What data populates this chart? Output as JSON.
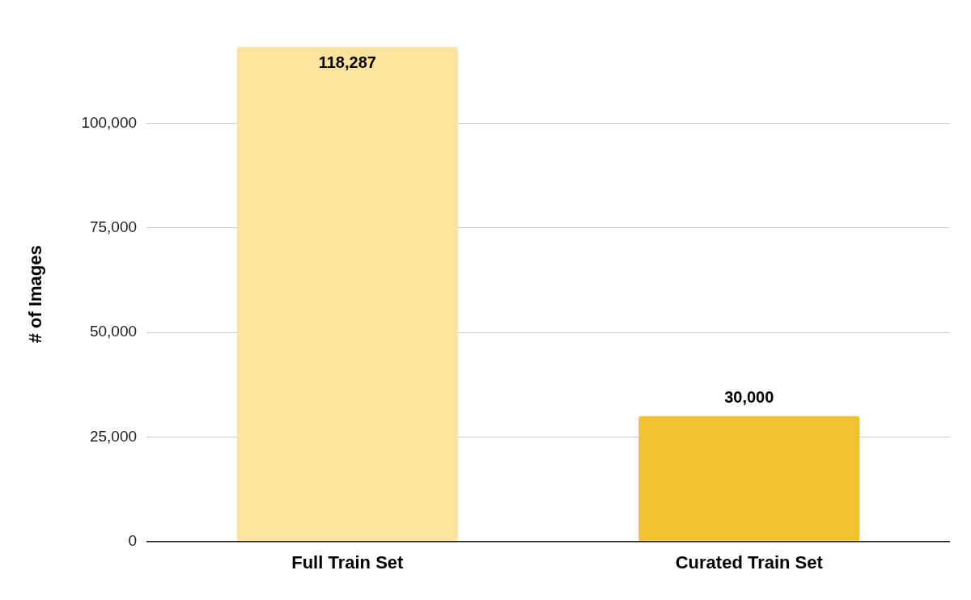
{
  "chart_data": {
    "type": "bar",
    "ylabel": "# of Images",
    "categories": [
      "Full Train Set",
      "Curated Train Set"
    ],
    "values": [
      118287,
      30000
    ],
    "value_labels": [
      "118,287",
      "30,000"
    ],
    "colors": [
      "#fde49c",
      "#f0c232"
    ],
    "yticks": [
      0,
      {
        "value": 25000,
        "label": "25,000"
      },
      {
        "value": 50000,
        "label": "50,000"
      },
      {
        "value": 75000,
        "label": "75,000"
      },
      {
        "value": 100000,
        "label": "100,000"
      }
    ],
    "ylim": [
      0,
      118287
    ],
    "grid": "y",
    "legend": false
  }
}
